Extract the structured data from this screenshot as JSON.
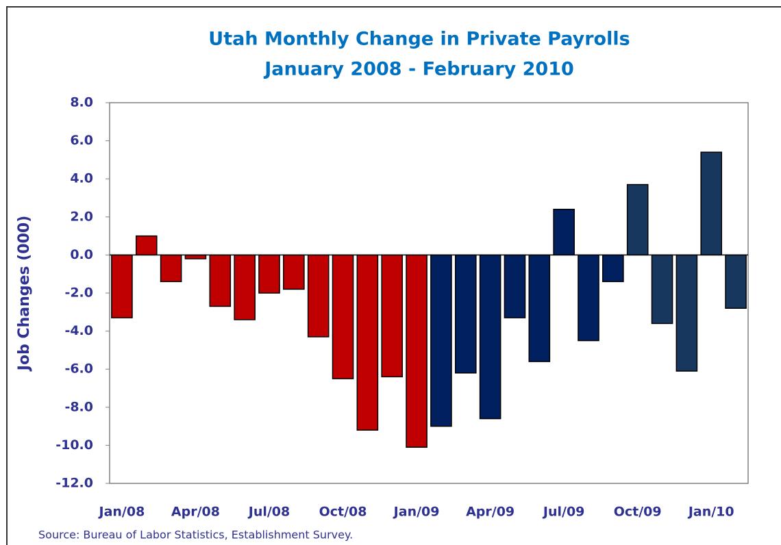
{
  "chart_data": {
    "type": "bar",
    "title": "Utah Monthly Change in Private Payrolls",
    "subtitle": "January 2008 - February 2010",
    "y_label": "Job Changes (000)",
    "source": "Source: Bureau of Labor Statistics, Establishment Survey.",
    "categories": [
      "Jan/08",
      null,
      null,
      "Apr/08",
      null,
      null,
      "Jul/08",
      null,
      null,
      "Oct/08",
      null,
      null,
      "Jan/09",
      null,
      null,
      "Apr/09",
      null,
      null,
      "Jul/09",
      null,
      null,
      "Oct/09",
      null,
      null,
      "Jan/10",
      null
    ],
    "values": [
      -3.3,
      1.0,
      -1.4,
      -0.2,
      -2.7,
      -3.4,
      -2.0,
      -1.8,
      -4.3,
      -6.5,
      -9.2,
      -6.4,
      -10.1,
      -9.0,
      -6.2,
      -8.6,
      -3.3,
      -5.6,
      2.4,
      -4.5,
      -1.4,
      3.7,
      -3.6,
      -6.1,
      5.4,
      -2.8
    ],
    "colors": [
      "#c00000",
      "#c00000",
      "#c00000",
      "#c00000",
      "#c00000",
      "#c00000",
      "#c00000",
      "#c00000",
      "#c00000",
      "#c00000",
      "#c00000",
      "#c00000",
      "#c00000",
      "#002060",
      "#002060",
      "#002060",
      "#002060",
      "#002060",
      "#002060",
      "#002060",
      "#002060",
      "#17375e",
      "#17375e",
      "#17375e",
      "#17375e",
      "#17375e"
    ],
    "ylim": [
      -12,
      8
    ],
    "yticks": [
      {
        "value": -12,
        "label": "-12.0"
      },
      {
        "value": -10,
        "label": "-10.0"
      },
      {
        "value": -8,
        "label": "-8.0"
      },
      {
        "value": -6,
        "label": "-6.0"
      },
      {
        "value": -4,
        "label": "-4.0"
      },
      {
        "value": -2,
        "label": "-2.0"
      },
      {
        "value": 0,
        "label": "0.0"
      },
      {
        "value": 2,
        "label": "2.0"
      },
      {
        "value": 4,
        "label": "4.0"
      },
      {
        "value": 6,
        "label": "6.0"
      },
      {
        "value": 8,
        "label": "8.0"
      }
    ],
    "grid": false
  }
}
